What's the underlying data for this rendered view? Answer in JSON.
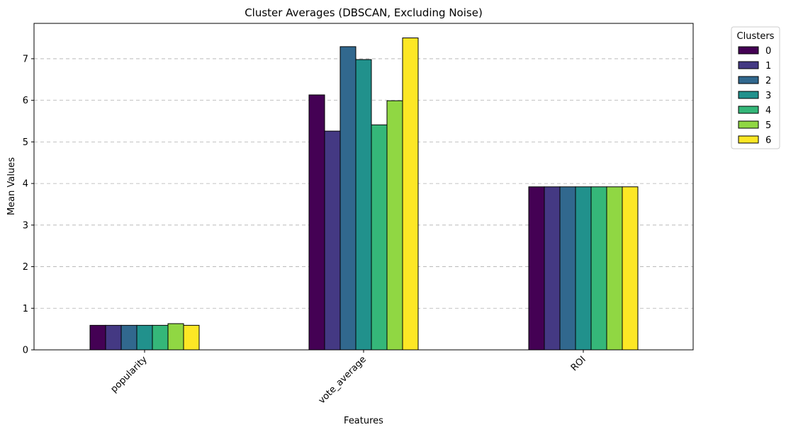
{
  "chart_data": {
    "type": "bar",
    "title": "Cluster Averages (DBSCAN, Excluding Noise)",
    "xlabel": "Features",
    "ylabel": "Mean Values",
    "categories": [
      "popularity",
      "vote_average",
      "ROI"
    ],
    "ylim": [
      0,
      7.85
    ],
    "yticks": [
      0,
      1,
      2,
      3,
      4,
      5,
      6,
      7
    ],
    "grid": "y-dashed",
    "legend": {
      "title": "Clusters",
      "placement": "outside-top-right"
    },
    "series": [
      {
        "name": "0",
        "color": "#440154",
        "values": [
          0.59,
          6.13,
          3.92
        ]
      },
      {
        "name": "1",
        "color": "#443983",
        "values": [
          0.59,
          5.26,
          3.92
        ]
      },
      {
        "name": "2",
        "color": "#31688e",
        "values": [
          0.59,
          7.29,
          3.92
        ]
      },
      {
        "name": "3",
        "color": "#21918c",
        "values": [
          0.59,
          6.98,
          3.92
        ]
      },
      {
        "name": "4",
        "color": "#35b779",
        "values": [
          0.59,
          5.41,
          3.92
        ]
      },
      {
        "name": "5",
        "color": "#90d743",
        "values": [
          0.63,
          5.99,
          3.92
        ]
      },
      {
        "name": "6",
        "color": "#fde725",
        "values": [
          0.59,
          7.5,
          3.92
        ]
      }
    ]
  }
}
